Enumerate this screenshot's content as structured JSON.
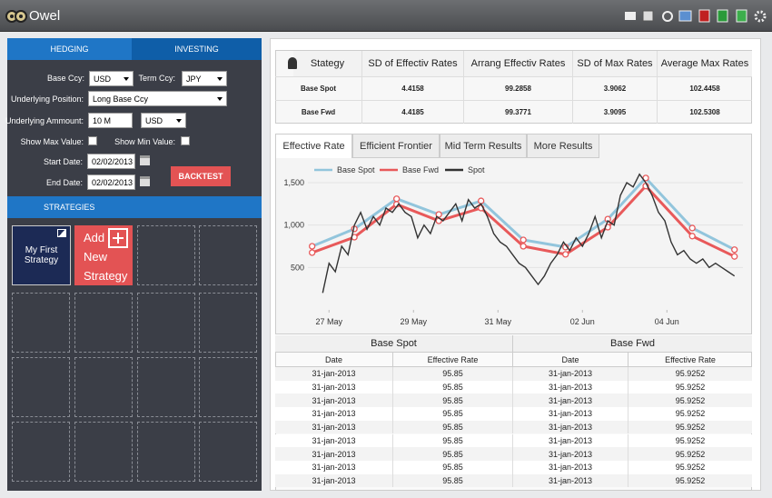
{
  "app": {
    "title": "Owel"
  },
  "hedging": {
    "tabs": [
      "HEDGING",
      "INVESTING"
    ],
    "base_ccy": {
      "label": "Base Ccy:",
      "value": "USD"
    },
    "term_ccy": {
      "label": "Term Ccy:",
      "value": "JPY"
    },
    "position": {
      "label": "Underlying Position:",
      "value": "Long Base Ccy"
    },
    "amount": {
      "label": "Underlying Ammount:",
      "value": "10 M",
      "currency": "USD"
    },
    "show_max": {
      "label": "Show Max Value:"
    },
    "show_min": {
      "label": "Show Min Value:"
    },
    "start_date": {
      "label": "Start Date:",
      "value": "02/02/2013"
    },
    "end_date": {
      "label": "End Date:",
      "value": "02/02/2013"
    },
    "button": "BACKTEST"
  },
  "strategies": {
    "header": "STRATEGIES",
    "tiles": [
      "My First Strategy",
      "Add New Strategy"
    ]
  },
  "summary_table": {
    "columns": [
      "Stategy",
      "SD of Effectiv Rates",
      "Arrang Effectiv Rates",
      "SD of Max Rates",
      "Average Max Rates"
    ],
    "rows": [
      [
        "Base Spot",
        "4.4158",
        "99.2858",
        "3.9062",
        "102.4458"
      ],
      [
        "Base Fwd",
        "4.4185",
        "99.3771",
        "3.9095",
        "102.5308"
      ]
    ]
  },
  "chart_tabs": [
    "Effective Rate",
    "Efficient Frontier",
    "Mid Term Results",
    "More Results"
  ],
  "chart_data": {
    "type": "line",
    "grid": true,
    "legend": "top-left",
    "xlim": [
      -0.5,
      9.8
    ],
    "xticks": [
      {
        "value": 0,
        "label": "27 May"
      },
      {
        "value": 2,
        "label": "29 May"
      },
      {
        "value": 4,
        "label": "31 May"
      },
      {
        "value": 6,
        "label": "02 Jun"
      },
      {
        "value": 8,
        "label": "04 Jun"
      }
    ],
    "ylim": [
      0,
      1650
    ],
    "yticks": [
      {
        "value": 500,
        "label": "500"
      },
      {
        "value": 1000,
        "label": "1,000"
      },
      {
        "value": 1500,
        "label": "1,500"
      }
    ],
    "series": [
      {
        "name": "Base Spot",
        "color": "#92c5dc",
        "markers": true,
        "x": [
          -0.4,
          0.6,
          1.6,
          2.6,
          3.6,
          4.6,
          5.6,
          6.6,
          7.5,
          8.6,
          9.6
        ],
        "values": [
          750,
          955,
          1310,
          1125,
          1285,
          825,
          740,
          1070,
          1555,
          965,
          710
        ]
      },
      {
        "name": "Base Fwd",
        "color": "#e8595a",
        "markers": true,
        "x": [
          -0.4,
          0.6,
          1.6,
          2.6,
          3.6,
          4.6,
          5.6,
          6.6,
          7.5,
          8.6,
          9.6
        ],
        "values": [
          675,
          857,
          1245,
          1050,
          1200,
          750,
          655,
          975,
          1460,
          870,
          630
        ]
      },
      {
        "name": "Spot",
        "color": "#333333",
        "markers": false,
        "x": [
          -0.15,
          0,
          0.15,
          0.3,
          0.45,
          0.6,
          0.75,
          0.9,
          1.05,
          1.2,
          1.35,
          1.5,
          1.65,
          1.8,
          1.95,
          2.1,
          2.25,
          2.4,
          2.55,
          2.7,
          2.85,
          3,
          3.15,
          3.3,
          3.45,
          3.6,
          3.75,
          3.9,
          4.05,
          4.2,
          4.35,
          4.5,
          4.65,
          4.8,
          4.95,
          5.1,
          5.25,
          5.4,
          5.55,
          5.7,
          5.85,
          6,
          6.15,
          6.3,
          6.45,
          6.6,
          6.75,
          6.9,
          7.05,
          7.2,
          7.35,
          7.5,
          7.65,
          7.8,
          7.95,
          8.1,
          8.25,
          8.4,
          8.55,
          8.7,
          8.85,
          9,
          9.15,
          9.3,
          9.45,
          9.6
        ],
        "values": [
          200,
          550,
          450,
          750,
          650,
          1000,
          1150,
          950,
          1100,
          1000,
          1200,
          1150,
          1250,
          1150,
          1100,
          850,
          1000,
          900,
          1100,
          1050,
          1150,
          1250,
          1050,
          1300,
          1200,
          1250,
          1100,
          900,
          800,
          750,
          650,
          550,
          500,
          400,
          300,
          400,
          550,
          650,
          800,
          700,
          850,
          750,
          900,
          1100,
          850,
          1050,
          1000,
          1350,
          1500,
          1450,
          1600,
          1500,
          1350,
          1150,
          1050,
          800,
          650,
          700,
          600,
          550,
          600,
          500,
          550,
          500,
          450,
          400
        ]
      }
    ]
  },
  "results_table": {
    "groups": [
      "Base Spot",
      "Base Fwd"
    ],
    "columns": [
      "Date",
      "Effective Rate",
      "Date",
      "Effective Rate"
    ],
    "rows": [
      [
        "31-jan-2013",
        "95.85",
        "31-jan-2013",
        "95.9252"
      ],
      [
        "31-jan-2013",
        "95.85",
        "31-jan-2013",
        "95.9252"
      ],
      [
        "31-jan-2013",
        "95.85",
        "31-jan-2013",
        "95.9252"
      ],
      [
        "31-jan-2013",
        "95.85",
        "31-jan-2013",
        "95.9252"
      ],
      [
        "31-jan-2013",
        "95.85",
        "31-jan-2013",
        "95.9252"
      ],
      [
        "31-jan-2013",
        "95.85",
        "31-jan-2013",
        "95.9252"
      ],
      [
        "31-jan-2013",
        "95.85",
        "31-jan-2013",
        "95.9252"
      ],
      [
        "31-jan-2013",
        "95.85",
        "31-jan-2013",
        "95.9252"
      ],
      [
        "31-jan-2013",
        "95.85",
        "31-jan-2013",
        "95.9252"
      ]
    ]
  }
}
